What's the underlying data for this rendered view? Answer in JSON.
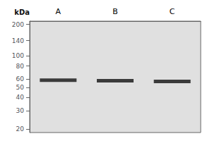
{
  "chart_data": {
    "type": "scatter",
    "ylabel": "kDa",
    "categories": [
      "A",
      "B",
      "C"
    ],
    "values": [
      58.5,
      58.0,
      57.0
    ],
    "color": "#111111",
    "marker": "rect",
    "log": "y",
    "ylim": [
      18.5,
      215
    ],
    "yticks": [
      200,
      140,
      100,
      80,
      60,
      50,
      40,
      30,
      20
    ],
    "grid": false
  }
}
